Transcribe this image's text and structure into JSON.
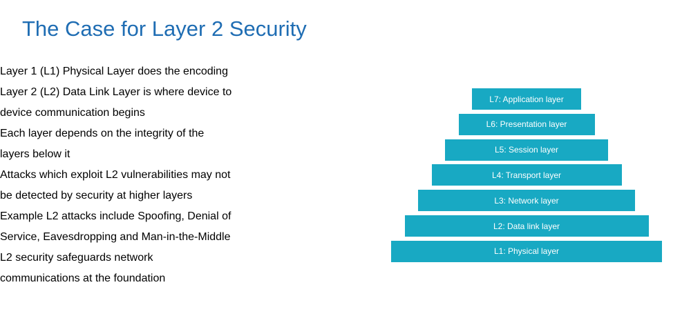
{
  "title": "The Case for Layer 2 Security",
  "bullets": [
    [
      "Layer 1 (L1) Physical Layer does the encoding"
    ],
    [
      "Layer 2 (L2) Data Link Layer is where device to",
      "device communication begins"
    ],
    [
      "Each layer depends on the integrity of the",
      "layers below it"
    ],
    [
      "Attacks which exploit L2 vulnerabilities may not",
      "be detected by security at higher layers"
    ],
    [
      "Example L2 attacks include Spoofing, Denial of",
      "Service, Eavesdropping and Man-in-the-Middle"
    ],
    [
      "L2 security safeguards network",
      "communications at the foundation"
    ]
  ],
  "layers": [
    "L7: Application layer",
    "L6: Presentation layer",
    "L5: Session layer",
    "L4: Transport layer",
    "L3: Network layer",
    "L2: Data link layer",
    "L1: Physical layer"
  ]
}
